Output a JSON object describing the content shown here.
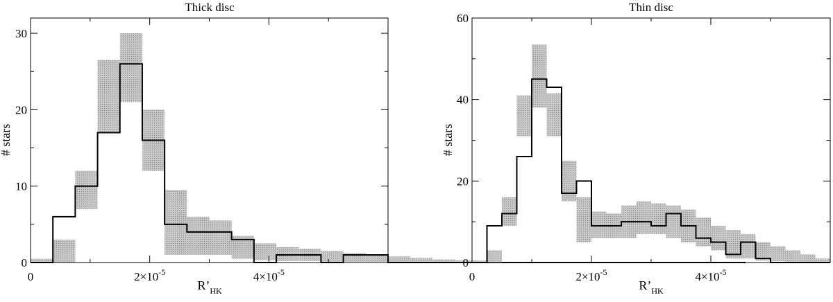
{
  "chart_data": [
    {
      "type": "bar",
      "title": "Thick disc",
      "xlabel": "R’HK",
      "xlabel_main": "R’",
      "xlabel_sub": "HK",
      "ylabel": "# stars",
      "xlim": [
        0,
        6e-05
      ],
      "ylim": [
        0,
        32
      ],
      "x_ticks": [
        {
          "value": 0,
          "label": "0",
          "exp": ""
        },
        {
          "value": 2e-05,
          "label": "2×10",
          "exp": "-5"
        },
        {
          "value": 4e-05,
          "label": "4×10",
          "exp": "-5"
        }
      ],
      "y_ticks": [
        0,
        10,
        20,
        30
      ],
      "bin_width": 3.75e-06,
      "bin_start": 0,
      "histogram": [
        0,
        6,
        10,
        17,
        26,
        16,
        5,
        4,
        4,
        3,
        0,
        1,
        1,
        0,
        1,
        1,
        0,
        0,
        0,
        0,
        0,
        0,
        0,
        0,
        0,
        0,
        0,
        0,
        0,
        0,
        0,
        0
      ],
      "band_low": [
        0,
        0,
        7,
        17,
        21,
        12,
        1,
        1,
        1,
        0.5,
        0.3,
        0.2,
        0.2,
        0.1,
        0.1,
        0.1,
        0,
        0,
        0,
        0,
        0,
        0,
        0,
        0,
        0,
        0,
        0,
        0,
        0,
        0,
        0,
        0
      ],
      "band_high": [
        0.5,
        3,
        12,
        26.5,
        30,
        20,
        9.5,
        6,
        5.5,
        3.5,
        2.5,
        2,
        1.8,
        1.5,
        1.2,
        1,
        0.8,
        0.6,
        0.4,
        0.3,
        0.2,
        0,
        0,
        0,
        0,
        0,
        0,
        0,
        0,
        0,
        0,
        0
      ]
    },
    {
      "type": "bar",
      "title": "Thin disc",
      "xlabel": "R’HK",
      "xlabel_main": "R’",
      "xlabel_sub": "HK",
      "ylabel": "# stars",
      "xlim": [
        0,
        6e-05
      ],
      "ylim": [
        0,
        60
      ],
      "x_ticks": [
        {
          "value": 0,
          "label": "0",
          "exp": ""
        },
        {
          "value": 2e-05,
          "label": "2×10",
          "exp": "-5"
        },
        {
          "value": 4e-05,
          "label": "4×10",
          "exp": "-5"
        }
      ],
      "y_ticks": [
        0,
        20,
        40,
        60
      ],
      "bin_width": 2.5e-06,
      "bin_start": 0,
      "histogram": [
        0,
        9,
        12,
        26,
        45,
        43,
        17,
        20,
        9,
        9,
        10,
        10,
        9,
        12,
        9,
        6,
        5,
        2,
        5,
        1,
        0,
        0,
        0,
        0
      ],
      "band_low": [
        0,
        0,
        9,
        31,
        38,
        31,
        15,
        5,
        6,
        6,
        6,
        7,
        7,
        6,
        5,
        4,
        3,
        1,
        1,
        0.5,
        0.3,
        0.2,
        0.1,
        0
      ],
      "band_high": [
        0.5,
        3,
        16,
        41,
        53.5,
        41.5,
        25,
        16,
        12.5,
        12,
        14,
        15,
        14.5,
        14,
        13,
        11,
        9,
        8,
        7,
        5,
        4,
        3,
        2,
        1
      ]
    }
  ]
}
